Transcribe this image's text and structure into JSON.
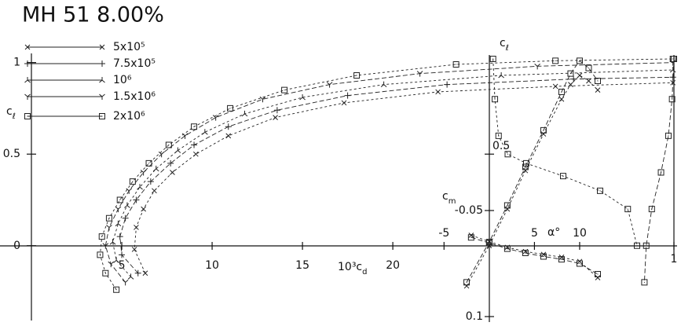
{
  "chart_data": [
    {
      "type": "line",
      "title": "MH 51 8.00%",
      "x_label": "10³c",
      "x_label_sub": "d",
      "y_label": "c",
      "y_label_sub": "ℓ",
      "xlim": [
        0,
        35.6
      ],
      "ylim": [
        -0.4,
        1.05
      ],
      "xticks": [
        5,
        10,
        15,
        20
      ],
      "yticks": [
        0,
        0.5,
        1
      ],
      "legend": "upper left",
      "series": [
        {
          "name": "5x10⁵",
          "marker": "x",
          "color": "#222",
          "x": [
            6.3,
            5.7,
            5.8,
            6.2,
            6.8,
            7.8,
            9.1,
            10.9,
            13.5,
            17.3,
            22.5,
            29,
            35.5
          ],
          "values": [
            -0.15,
            -0.02,
            0.1,
            0.2,
            0.3,
            0.4,
            0.5,
            0.6,
            0.7,
            0.78,
            0.84,
            0.87,
            0.89
          ]
        },
        {
          "name": "7.5x10⁵",
          "marker": "plus",
          "color": "#222",
          "x": [
            5.9,
            5.0,
            4.9,
            5.2,
            5.8,
            6.6,
            7.7,
            9.0,
            10.9,
            13.6,
            17.5,
            23,
            30,
            35.5
          ],
          "values": [
            -0.15,
            -0.05,
            0.05,
            0.15,
            0.25,
            0.35,
            0.45,
            0.55,
            0.65,
            0.74,
            0.82,
            0.88,
            0.91,
            0.92
          ]
        },
        {
          "name": "10⁶",
          "marker": "lambda",
          "color": "#222",
          "x": [
            5.5,
            4.7,
            4.5,
            4.8,
            5.3,
            6.0,
            6.9,
            8.1,
            9.6,
            11.8,
            15.0,
            19.5,
            26,
            35.5
          ],
          "values": [
            -0.17,
            -0.08,
            0.02,
            0.12,
            0.22,
            0.32,
            0.42,
            0.52,
            0.62,
            0.72,
            0.81,
            0.88,
            0.93,
            0.96
          ]
        },
        {
          "name": "1.5x10⁶",
          "marker": "y",
          "color": "#222",
          "x": [
            5.2,
            4.4,
            4.1,
            4.3,
            4.8,
            5.4,
            6.2,
            7.2,
            8.5,
            10.2,
            12.8,
            16.5,
            21.5,
            28,
            35.5
          ],
          "values": [
            -0.2,
            -0.1,
            0,
            0.1,
            0.2,
            0.3,
            0.4,
            0.5,
            0.6,
            0.7,
            0.8,
            0.88,
            0.94,
            0.98,
            1.0
          ]
        },
        {
          "name": "2x10⁶",
          "marker": "square",
          "color": "#222",
          "x": [
            4.7,
            4.1,
            3.8,
            3.9,
            4.3,
            4.9,
            5.6,
            6.5,
            7.6,
            9.0,
            11.0,
            14.0,
            18.0,
            23.5,
            29,
            35.5
          ],
          "values": [
            -0.24,
            -0.15,
            -0.05,
            0.05,
            0.15,
            0.25,
            0.35,
            0.45,
            0.55,
            0.65,
            0.75,
            0.85,
            0.93,
            0.99,
            1.01,
            1.02
          ]
        }
      ]
    },
    {
      "type": "line",
      "x_label": "α°",
      "y_label": "c",
      "y_label_sub": "ℓ",
      "xlim": [
        -5.2,
        20.6
      ],
      "ylim": [
        -0.4,
        1.05
      ],
      "xticks": [
        -5,
        5,
        10
      ],
      "yticks": [
        0.5
      ],
      "series": [
        {
          "marker": "x",
          "color": "#222",
          "x": [
            -2.5,
            0,
            2,
            4,
            6,
            8,
            9,
            10,
            11,
            12
          ],
          "values": [
            -0.22,
            0,
            0.2,
            0.41,
            0.61,
            0.8,
            0.88,
            0.93,
            0.9,
            0.85
          ]
        },
        {
          "marker": "square",
          "color": "#222",
          "x": [
            -2.5,
            0,
            2,
            4,
            6,
            8,
            9,
            10,
            11,
            12
          ],
          "values": [
            -0.2,
            0.02,
            0.22,
            0.43,
            0.63,
            0.84,
            0.94,
            1.01,
            0.97,
            0.9
          ]
        }
      ]
    },
    {
      "type": "line",
      "y_label": "c",
      "y_label_sub": "m",
      "y_inverted": true,
      "xlim": [
        -5.2,
        20.6
      ],
      "ylim": [
        -0.05,
        0.1
      ],
      "yticks": [
        -0.05,
        0.1
      ],
      "series": [
        {
          "marker": "x",
          "color": "#222",
          "x": [
            -2,
            0,
            2,
            4,
            6,
            8,
            10,
            12
          ],
          "values": [
            -0.015,
            -0.006,
            0.002,
            0.008,
            0.012,
            0.016,
            0.022,
            0.045
          ]
        },
        {
          "marker": "square",
          "color": "#222",
          "x": [
            -2,
            0,
            2,
            4,
            6,
            8,
            10,
            12
          ],
          "values": [
            -0.012,
            -0.004,
            0.004,
            0.01,
            0.015,
            0.019,
            0.025,
            0.04
          ]
        }
      ]
    },
    {
      "type": "line",
      "xlim": [
        0,
        1
      ],
      "ylim": [
        -0.4,
        1.05
      ],
      "xticks": [
        1
      ],
      "series": [
        {
          "marker": "square",
          "color": "#222",
          "x": [
            0.02,
            0.03,
            0.05,
            0.1,
            0.2,
            0.4,
            0.6,
            0.75,
            0.8
          ],
          "values": [
            1.02,
            0.8,
            0.6,
            0.5,
            0.45,
            0.38,
            0.3,
            0.2,
            0.0
          ]
        },
        {
          "marker": "square",
          "color": "#222",
          "x": [
            1.0,
            0.99,
            0.97,
            0.93,
            0.88,
            0.85,
            0.84
          ],
          "values": [
            1.02,
            0.8,
            0.6,
            0.4,
            0.2,
            0.0,
            -0.2
          ]
        }
      ]
    }
  ]
}
